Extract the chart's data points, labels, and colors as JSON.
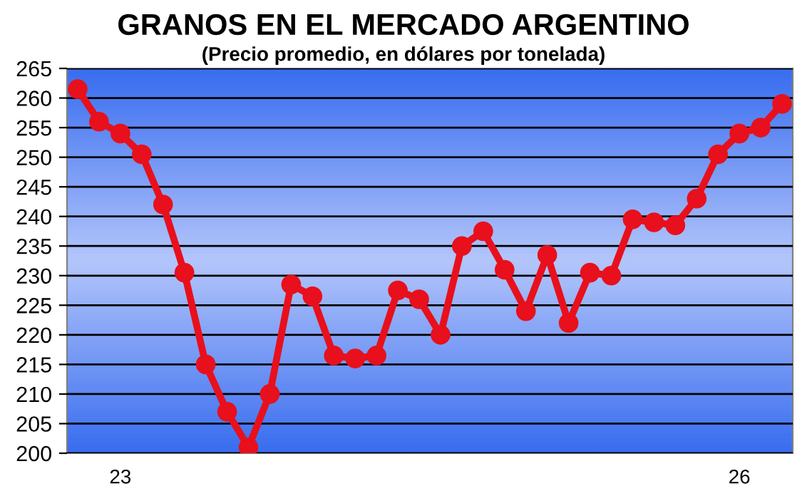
{
  "chart_data": {
    "type": "line",
    "title": "GRANOS EN EL MERCADO ARGENTINO",
    "subtitle": "(Precio promedio, en dólares por tonelada)",
    "categories": [
      null,
      null,
      "23",
      null,
      null,
      null,
      null,
      null,
      null,
      null,
      null,
      null,
      null,
      null,
      null,
      null,
      null,
      null,
      null,
      null,
      null,
      null,
      null,
      null,
      null,
      null,
      null,
      null,
      null,
      null,
      null,
      "26",
      null,
      null
    ],
    "series": [
      {
        "color": "#e8101c",
        "values": [
          261.5,
          256,
          254,
          250.5,
          242,
          230.5,
          215,
          207,
          201,
          210,
          228.5,
          226.5,
          216.5,
          216,
          216.5,
          227.5,
          226,
          220,
          235,
          237.5,
          231,
          224,
          233.5,
          222,
          230.5,
          230,
          239.5,
          239,
          238.5,
          243,
          250.5,
          254,
          255,
          259
        ]
      }
    ],
    "ylim": [
      200,
      265
    ],
    "yticks": [
      200,
      205,
      210,
      215,
      220,
      225,
      230,
      235,
      240,
      245,
      250,
      255,
      260,
      265
    ],
    "grid": "y",
    "marker": "circle",
    "line_style": "solid",
    "legend": false
  }
}
